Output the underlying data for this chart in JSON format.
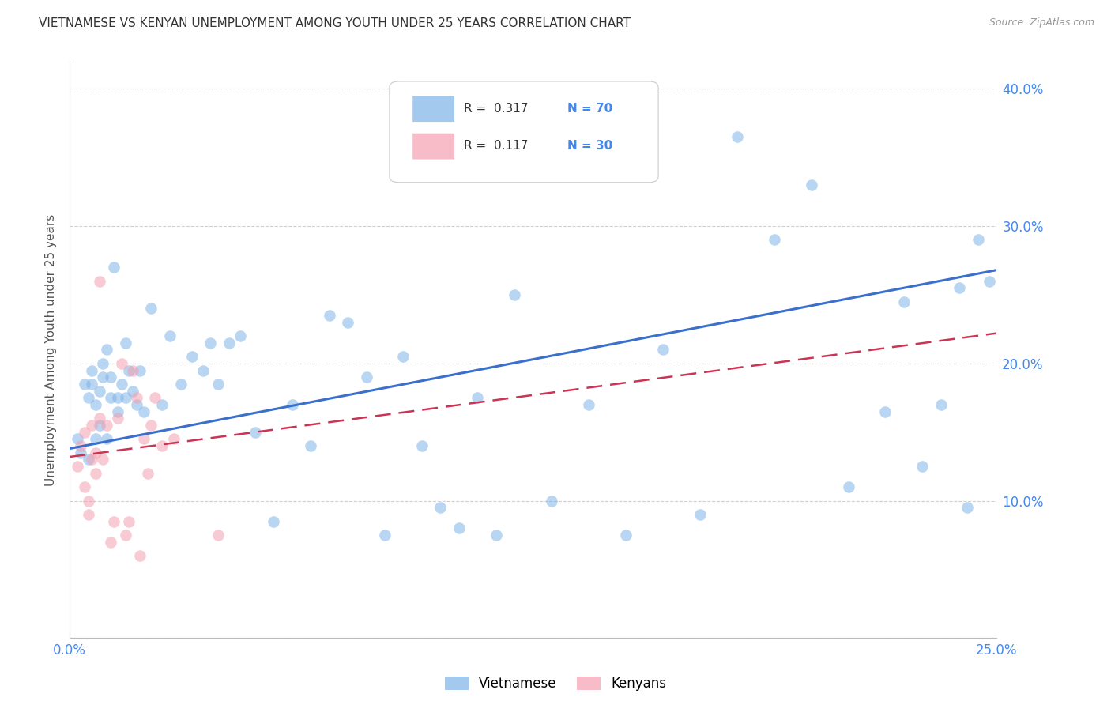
{
  "title": "VIETNAMESE VS KENYAN UNEMPLOYMENT AMONG YOUTH UNDER 25 YEARS CORRELATION CHART",
  "source": "Source: ZipAtlas.com",
  "ylabel": "Unemployment Among Youth under 25 years",
  "xlim": [
    0.0,
    0.25
  ],
  "ylim": [
    0.0,
    0.42
  ],
  "xticks": [
    0.0,
    0.05,
    0.1,
    0.15,
    0.2,
    0.25
  ],
  "yticks": [
    0.0,
    0.1,
    0.2,
    0.3,
    0.4
  ],
  "viet_color": "#7EB3E8",
  "kenyan_color": "#F4A0B0",
  "viet_line_color": "#3B6FCC",
  "kenyan_line_color": "#CC3355",
  "background_color": "#FFFFFF",
  "grid_color": "#D0D0D0",
  "marker_size": 110,
  "marker_alpha": 0.55,
  "viet_line_y0": 0.138,
  "viet_line_y1": 0.268,
  "kenyan_line_y0": 0.132,
  "kenyan_line_y1": 0.222,
  "vietnamese_x": [
    0.002,
    0.003,
    0.004,
    0.005,
    0.005,
    0.006,
    0.006,
    0.007,
    0.007,
    0.008,
    0.008,
    0.009,
    0.009,
    0.01,
    0.01,
    0.011,
    0.011,
    0.012,
    0.013,
    0.013,
    0.014,
    0.015,
    0.015,
    0.016,
    0.017,
    0.018,
    0.019,
    0.02,
    0.022,
    0.025,
    0.027,
    0.03,
    0.033,
    0.036,
    0.038,
    0.04,
    0.043,
    0.046,
    0.05,
    0.055,
    0.06,
    0.065,
    0.07,
    0.075,
    0.08,
    0.085,
    0.09,
    0.095,
    0.1,
    0.105,
    0.11,
    0.115,
    0.12,
    0.13,
    0.14,
    0.15,
    0.16,
    0.17,
    0.18,
    0.19,
    0.2,
    0.21,
    0.22,
    0.225,
    0.23,
    0.235,
    0.24,
    0.242,
    0.245,
    0.248
  ],
  "vietnamese_y": [
    0.145,
    0.135,
    0.185,
    0.175,
    0.13,
    0.195,
    0.185,
    0.17,
    0.145,
    0.18,
    0.155,
    0.19,
    0.2,
    0.145,
    0.21,
    0.19,
    0.175,
    0.27,
    0.165,
    0.175,
    0.185,
    0.215,
    0.175,
    0.195,
    0.18,
    0.17,
    0.195,
    0.165,
    0.24,
    0.17,
    0.22,
    0.185,
    0.205,
    0.195,
    0.215,
    0.185,
    0.215,
    0.22,
    0.15,
    0.085,
    0.17,
    0.14,
    0.235,
    0.23,
    0.19,
    0.075,
    0.205,
    0.14,
    0.095,
    0.08,
    0.175,
    0.075,
    0.25,
    0.1,
    0.17,
    0.075,
    0.21,
    0.09,
    0.365,
    0.29,
    0.33,
    0.11,
    0.165,
    0.245,
    0.125,
    0.17,
    0.255,
    0.095,
    0.29,
    0.26
  ],
  "kenyan_x": [
    0.002,
    0.003,
    0.004,
    0.004,
    0.005,
    0.005,
    0.006,
    0.006,
    0.007,
    0.007,
    0.008,
    0.008,
    0.009,
    0.01,
    0.011,
    0.012,
    0.013,
    0.014,
    0.015,
    0.016,
    0.017,
    0.018,
    0.019,
    0.02,
    0.021,
    0.022,
    0.023,
    0.025,
    0.028,
    0.04
  ],
  "kenyan_y": [
    0.125,
    0.14,
    0.11,
    0.15,
    0.1,
    0.09,
    0.155,
    0.13,
    0.135,
    0.12,
    0.16,
    0.26,
    0.13,
    0.155,
    0.07,
    0.085,
    0.16,
    0.2,
    0.075,
    0.085,
    0.195,
    0.175,
    0.06,
    0.145,
    0.12,
    0.155,
    0.175,
    0.14,
    0.145,
    0.075
  ]
}
